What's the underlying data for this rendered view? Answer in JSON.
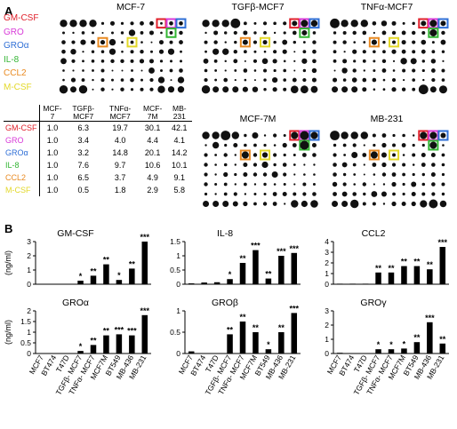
{
  "panel_a_label": "A",
  "panel_b_label": "B",
  "cytokine_labels": [
    {
      "text": "GM-CSF",
      "color": "#e0202b"
    },
    {
      "text": "GRO",
      "color": "#d83ad8"
    },
    {
      "text": "GROα",
      "color": "#2f6fd6"
    },
    {
      "text": "IL-8",
      "color": "#33b533"
    },
    {
      "text": "CCL2",
      "color": "#e98a21"
    },
    {
      "text": "M-CSF",
      "color": "#e3d829"
    }
  ],
  "arrays": [
    {
      "title": "MCF-7"
    },
    {
      "title": "TGFβ-MCF7"
    },
    {
      "title": "TNFα-MCF7"
    },
    {
      "title": "MCF-7M"
    },
    {
      "title": "MB-231"
    }
  ],
  "fold_table": {
    "headers": [
      "MCF-7",
      "TGFβ-MCF7",
      "TNFα-MCF7",
      "MCF-7M",
      "MB-231"
    ],
    "rows": [
      {
        "label": "GM-CSF",
        "color": "#e0202b",
        "values": [
          "1.0",
          "6.3",
          "19.7",
          "30.1",
          "42.1"
        ]
      },
      {
        "label": "GRO",
        "color": "#d83ad8",
        "values": [
          "1.0",
          "3.4",
          "4.0",
          "4.4",
          "4.1"
        ]
      },
      {
        "label": "GROα",
        "color": "#2f6fd6",
        "values": [
          "1.0",
          "3.2",
          "14.8",
          "20.1",
          "14.2"
        ]
      },
      {
        "label": "IL-8",
        "color": "#33b533",
        "values": [
          "1.0",
          "7.6",
          "9.7",
          "10.6",
          "10.1"
        ]
      },
      {
        "label": "CCL2",
        "color": "#e98a21",
        "values": [
          "1.0",
          "6.5",
          "3.7",
          "4.9",
          "9.1"
        ]
      },
      {
        "label": "M-CSF",
        "color": "#e3d829",
        "values": [
          "1.0",
          "0.5",
          "1.8",
          "2.9",
          "5.8"
        ]
      }
    ]
  },
  "chart_data": [
    {
      "type": "bar",
      "title": "GM-CSF",
      "ylabel": "(ng/ml)",
      "ylim": [
        0,
        3
      ],
      "yticks": [
        "0",
        "1",
        "2",
        "3"
      ],
      "categories": [
        "MCF7",
        "BT474",
        "T47D",
        "TGFβ- MCF7",
        "TNFα- MCF7",
        "MCF7M",
        "BT549",
        "MB-436",
        "MB-231"
      ],
      "values": [
        0.02,
        0.02,
        0.02,
        0.25,
        0.6,
        1.4,
        0.3,
        1.1,
        3.0
      ],
      "significance": [
        "",
        "",
        "",
        "*",
        "**",
        "**",
        "*",
        "**",
        "***"
      ]
    },
    {
      "type": "bar",
      "title": "IL-8",
      "ylim": [
        0,
        1.5
      ],
      "yticks": [
        "0",
        "0.5",
        "1",
        "1.5"
      ],
      "categories": [
        "MCF7",
        "BT474",
        "T47D",
        "TGFβ- MCF7",
        "TNFα- MCF7",
        "MCF7M",
        "BT549",
        "MB-436",
        "MB-231"
      ],
      "values": [
        0.03,
        0.06,
        0.07,
        0.18,
        0.75,
        1.2,
        0.2,
        1.0,
        1.1
      ],
      "significance": [
        "",
        "",
        "",
        "*",
        "**",
        "***",
        "**",
        "***",
        "***"
      ]
    },
    {
      "type": "bar",
      "title": "CCL2",
      "ylim": [
        0,
        4
      ],
      "yticks": [
        "0",
        "1",
        "2",
        "3",
        "4"
      ],
      "categories": [
        "MCF7",
        "BT474",
        "T47D",
        "TGFβ- MCF7",
        "TNFα- MCF7",
        "MCF7M",
        "BT549",
        "MB-436",
        "MB-231"
      ],
      "values": [
        0.05,
        0.05,
        0.05,
        1.1,
        1.1,
        1.7,
        1.7,
        1.4,
        3.5
      ],
      "significance": [
        "",
        "",
        "",
        "**",
        "**",
        "**",
        "**",
        "**",
        "***"
      ]
    },
    {
      "type": "bar",
      "title": "GROα",
      "ylabel": "(ng/ml)",
      "ylim": [
        0,
        2
      ],
      "yticks": [
        "0",
        "0.5",
        "1",
        "1.5",
        "2"
      ],
      "categories": [
        "MCF7",
        "BT474",
        "T47D",
        "TGFβ- MCF7",
        "TNFα- MCF7",
        "MCF7M",
        "BT549",
        "MB-436",
        "MB-231"
      ],
      "values": [
        0.02,
        0.02,
        0.02,
        0.12,
        0.4,
        0.85,
        0.9,
        0.85,
        1.8
      ],
      "significance": [
        "",
        "",
        "",
        "*",
        "**",
        "**",
        "***",
        "***",
        "***"
      ]
    },
    {
      "type": "bar",
      "title": "GROβ",
      "ylim": [
        0,
        1
      ],
      "yticks": [
        "0",
        "0.5",
        "1"
      ],
      "categories": [
        "MCF7",
        "BT474",
        "T47D",
        "TGFβ- MCF7",
        "TNFα- MCF7",
        "MCF7M",
        "BT549",
        "MB-436",
        "MB-231"
      ],
      "values": [
        0.05,
        0.01,
        0.01,
        0.45,
        0.75,
        0.5,
        0.1,
        0.5,
        0.95
      ],
      "significance": [
        "",
        "",
        "",
        "**",
        "**",
        "**",
        "*",
        "**",
        "***"
      ]
    },
    {
      "type": "bar",
      "title": "GROγ",
      "ylim": [
        0,
        3
      ],
      "yticks": [
        "0",
        "1",
        "2",
        "3"
      ],
      "categories": [
        "MCF7",
        "BT474",
        "T47D",
        "TGFβ- MCF7",
        "TNFα- MCF7",
        "MCF7M",
        "BT549",
        "MB-436",
        "MB-231"
      ],
      "values": [
        0.05,
        0.01,
        0.01,
        0.3,
        0.3,
        0.35,
        0.8,
        2.2,
        0.7
      ],
      "significance": [
        "",
        "",
        "",
        "*",
        "*",
        "*",
        "**",
        "***",
        "**"
      ]
    }
  ]
}
